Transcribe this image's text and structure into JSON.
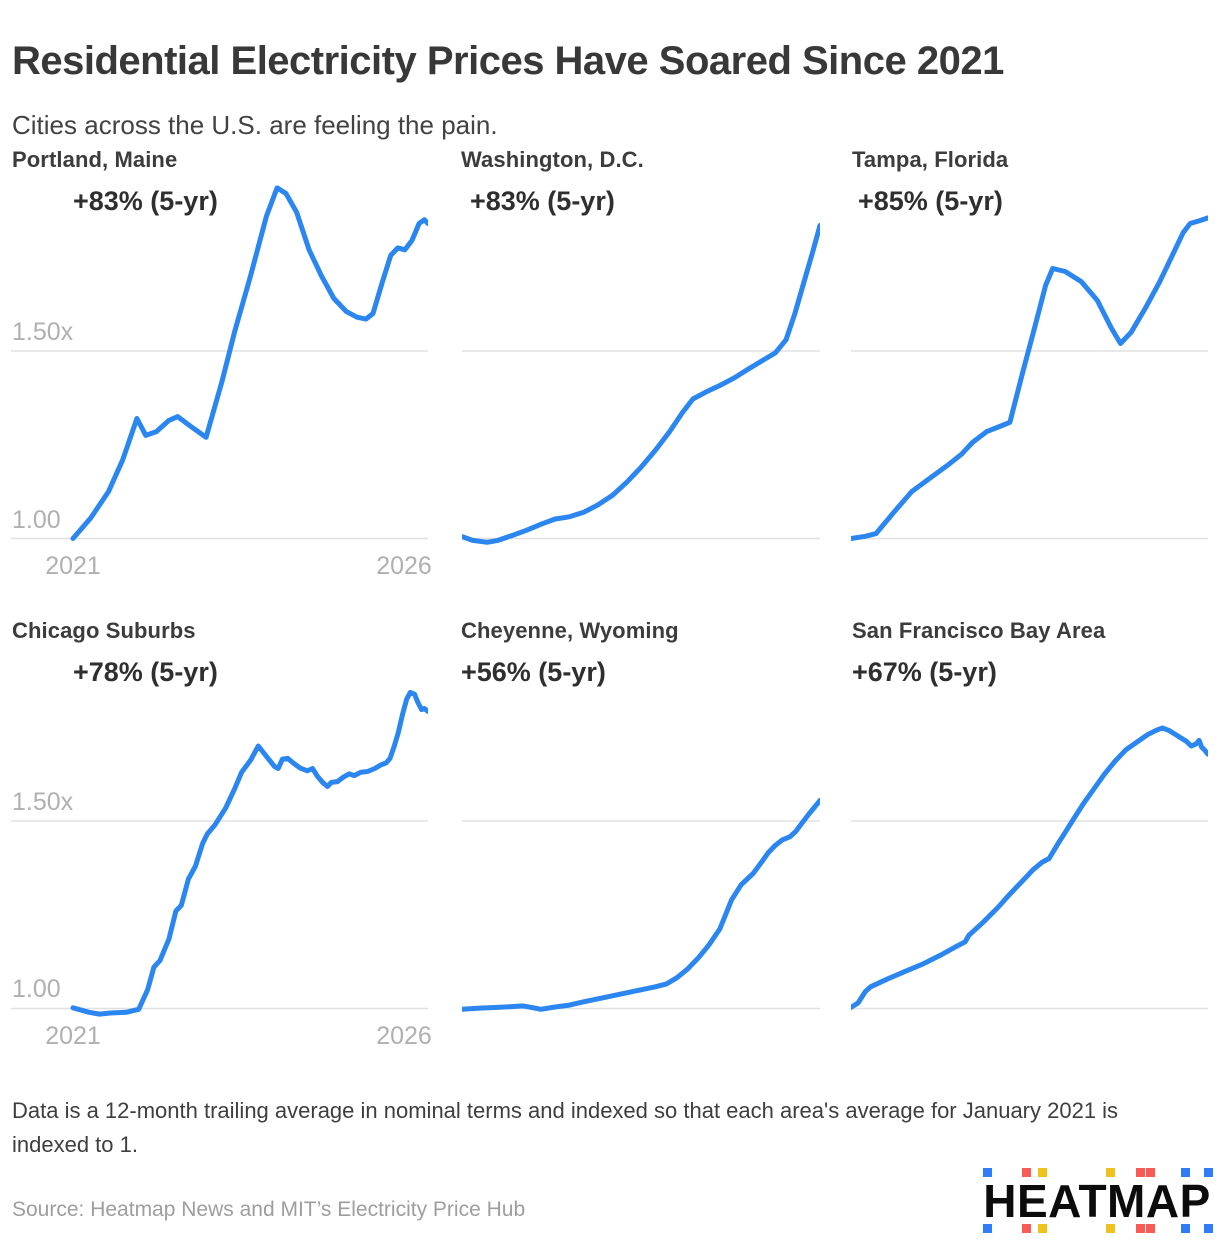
{
  "header": {
    "title": "Residential Electricity Prices Have Soared Since 2021",
    "subtitle": "Cities across the U.S. are feeling the pain."
  },
  "axis": {
    "y_label_upper": "1.50x",
    "y_label_lower": "1.00",
    "x_label_start": "2021",
    "x_label_end": "2026"
  },
  "colors": {
    "line": "#2b86f0",
    "grid": "#e0e0e0",
    "axis_label": "#b0b0b0",
    "logo_blue": "#2f7cf6",
    "logo_red": "#f75b56",
    "logo_yellow": "#eec31c"
  },
  "footer": {
    "note": "Data is a 12-month trailing average in nominal terms and indexed so that each area's average for January 2021 is indexed to 1.",
    "source": "Source: Heatmap News and MIT’s Electricity Price Hub"
  },
  "logo": {
    "text": "HEATMAP",
    "square_colors": [
      "#2f7cf6",
      "#f75b56",
      "#eec31c",
      "#eec31c",
      "#f75b56",
      "#f75b56",
      "#2f7cf6",
      "#2f7cf6"
    ]
  },
  "chart_data": [
    {
      "type": "line",
      "title": "Portland, Maine",
      "annotation": "+83% (5-yr)",
      "change_5yr_pct": 83,
      "x_range": [
        "2021",
        "2026"
      ],
      "x_unit": "fraction of timeline Jan 2021 to end of series",
      "ylabel": "price index (Jan 2021 = 1)",
      "y_gridlines": [
        1.0,
        1.5
      ],
      "points": [
        [
          0,
          1.0
        ],
        [
          0.05,
          1.055
        ],
        [
          0.1,
          1.125
        ],
        [
          0.14,
          1.21
        ],
        [
          0.18,
          1.32
        ],
        [
          0.205,
          1.275
        ],
        [
          0.235,
          1.285
        ],
        [
          0.27,
          1.315
        ],
        [
          0.295,
          1.325
        ],
        [
          0.33,
          1.3
        ],
        [
          0.375,
          1.27
        ],
        [
          0.42,
          1.42
        ],
        [
          0.455,
          1.55
        ],
        [
          0.5,
          1.7
        ],
        [
          0.545,
          1.86
        ],
        [
          0.575,
          1.935
        ],
        [
          0.6,
          1.92
        ],
        [
          0.63,
          1.87
        ],
        [
          0.665,
          1.77
        ],
        [
          0.7,
          1.7
        ],
        [
          0.735,
          1.64
        ],
        [
          0.77,
          1.605
        ],
        [
          0.8,
          1.59
        ],
        [
          0.825,
          1.585
        ],
        [
          0.845,
          1.6
        ],
        [
          0.87,
          1.68
        ],
        [
          0.895,
          1.755
        ],
        [
          0.915,
          1.775
        ],
        [
          0.935,
          1.77
        ],
        [
          0.955,
          1.795
        ],
        [
          0.975,
          1.84
        ],
        [
          0.99,
          1.85
        ],
        [
          1,
          1.84
        ]
      ]
    },
    {
      "type": "line",
      "title": "Washington, D.C.",
      "annotation": "+83% (5-yr)",
      "change_5yr_pct": 83,
      "x_range": [
        "2021",
        "2026"
      ],
      "x_unit": "fraction of timeline Jan 2021 to end of series",
      "ylabel": "price index (Jan 2021 = 1)",
      "y_gridlines": [
        1.0,
        1.5
      ],
      "points": [
        [
          0,
          1.005
        ],
        [
          0.03,
          0.995
        ],
        [
          0.07,
          0.99
        ],
        [
          0.1,
          0.995
        ],
        [
          0.14,
          1.008
        ],
        [
          0.18,
          1.022
        ],
        [
          0.22,
          1.038
        ],
        [
          0.26,
          1.052
        ],
        [
          0.3,
          1.058
        ],
        [
          0.34,
          1.07
        ],
        [
          0.38,
          1.09
        ],
        [
          0.42,
          1.115
        ],
        [
          0.46,
          1.15
        ],
        [
          0.5,
          1.19
        ],
        [
          0.54,
          1.235
        ],
        [
          0.58,
          1.285
        ],
        [
          0.615,
          1.335
        ],
        [
          0.645,
          1.372
        ],
        [
          0.68,
          1.39
        ],
        [
          0.72,
          1.408
        ],
        [
          0.76,
          1.428
        ],
        [
          0.8,
          1.452
        ],
        [
          0.84,
          1.475
        ],
        [
          0.875,
          1.495
        ],
        [
          0.905,
          1.53
        ],
        [
          0.93,
          1.6
        ],
        [
          0.96,
          1.7
        ],
        [
          0.98,
          1.765
        ],
        [
          1,
          1.835
        ]
      ]
    },
    {
      "type": "line",
      "title": "Tampa, Florida",
      "annotation": "+85% (5-yr)",
      "change_5yr_pct": 85,
      "x_range": [
        "2021",
        "2026"
      ],
      "x_unit": "fraction of timeline Jan 2021 to end of series",
      "ylabel": "price index (Jan 2021 = 1)",
      "y_gridlines": [
        1.0,
        1.5
      ],
      "points": [
        [
          0,
          1.0
        ],
        [
          0.04,
          1.006
        ],
        [
          0.07,
          1.013
        ],
        [
          0.12,
          1.07
        ],
        [
          0.17,
          1.125
        ],
        [
          0.22,
          1.16
        ],
        [
          0.27,
          1.195
        ],
        [
          0.31,
          1.225
        ],
        [
          0.34,
          1.256
        ],
        [
          0.38,
          1.285
        ],
        [
          0.42,
          1.3
        ],
        [
          0.445,
          1.31
        ],
        [
          0.48,
          1.44
        ],
        [
          0.515,
          1.565
        ],
        [
          0.545,
          1.675
        ],
        [
          0.565,
          1.72
        ],
        [
          0.6,
          1.712
        ],
        [
          0.645,
          1.685
        ],
        [
          0.69,
          1.635
        ],
        [
          0.73,
          1.56
        ],
        [
          0.755,
          1.52
        ],
        [
          0.785,
          1.55
        ],
        [
          0.825,
          1.615
        ],
        [
          0.865,
          1.685
        ],
        [
          0.9,
          1.755
        ],
        [
          0.93,
          1.815
        ],
        [
          0.95,
          1.84
        ],
        [
          0.975,
          1.847
        ],
        [
          1,
          1.855
        ]
      ]
    },
    {
      "type": "line",
      "title": "Chicago Suburbs",
      "annotation": "+78% (5-yr)",
      "change_5yr_pct": 78,
      "x_range": [
        "2021",
        "2026"
      ],
      "x_unit": "fraction of timeline Jan 2021 to end of series",
      "ylabel": "price index (Jan 2021 = 1)",
      "y_gridlines": [
        1.0,
        1.5
      ],
      "points": [
        [
          0,
          1.002
        ],
        [
          0.045,
          0.99
        ],
        [
          0.075,
          0.985
        ],
        [
          0.105,
          0.988
        ],
        [
          0.15,
          0.99
        ],
        [
          0.185,
          0.998
        ],
        [
          0.21,
          1.05
        ],
        [
          0.228,
          1.11
        ],
        [
          0.245,
          1.128
        ],
        [
          0.27,
          1.185
        ],
        [
          0.29,
          1.26
        ],
        [
          0.305,
          1.275
        ],
        [
          0.325,
          1.345
        ],
        [
          0.345,
          1.38
        ],
        [
          0.365,
          1.44
        ],
        [
          0.378,
          1.465
        ],
        [
          0.4,
          1.49
        ],
        [
          0.43,
          1.535
        ],
        [
          0.455,
          1.585
        ],
        [
          0.475,
          1.63
        ],
        [
          0.5,
          1.662
        ],
        [
          0.522,
          1.7
        ],
        [
          0.545,
          1.672
        ],
        [
          0.568,
          1.645
        ],
        [
          0.578,
          1.64
        ],
        [
          0.59,
          1.665
        ],
        [
          0.605,
          1.667
        ],
        [
          0.62,
          1.655
        ],
        [
          0.64,
          1.641
        ],
        [
          0.66,
          1.634
        ],
        [
          0.675,
          1.64
        ],
        [
          0.688,
          1.62
        ],
        [
          0.703,
          1.603
        ],
        [
          0.717,
          1.592
        ],
        [
          0.728,
          1.603
        ],
        [
          0.745,
          1.605
        ],
        [
          0.76,
          1.616
        ],
        [
          0.778,
          1.626
        ],
        [
          0.792,
          1.621
        ],
        [
          0.81,
          1.63
        ],
        [
          0.83,
          1.632
        ],
        [
          0.85,
          1.64
        ],
        [
          0.868,
          1.65
        ],
        [
          0.882,
          1.655
        ],
        [
          0.893,
          1.667
        ],
        [
          0.905,
          1.7
        ],
        [
          0.916,
          1.735
        ],
        [
          0.928,
          1.783
        ],
        [
          0.94,
          1.825
        ],
        [
          0.95,
          1.843
        ],
        [
          0.962,
          1.838
        ],
        [
          0.972,
          1.815
        ],
        [
          0.982,
          1.797
        ],
        [
          0.99,
          1.8
        ],
        [
          1,
          1.792
        ]
      ]
    },
    {
      "type": "line",
      "title": "Cheyenne, Wyoming",
      "annotation": "+56% (5-yr)",
      "change_5yr_pct": 56,
      "x_range": [
        "2021",
        "2026"
      ],
      "x_unit": "fraction of timeline Jan 2021 to end of series",
      "ylabel": "price index (Jan 2021 = 1)",
      "y_gridlines": [
        1.0,
        1.5
      ],
      "points": [
        [
          0,
          0.998
        ],
        [
          0.05,
          1.001
        ],
        [
          0.1,
          1.003
        ],
        [
          0.14,
          1.005
        ],
        [
          0.17,
          1.007
        ],
        [
          0.2,
          1.002
        ],
        [
          0.22,
          0.998
        ],
        [
          0.26,
          1.004
        ],
        [
          0.3,
          1.009
        ],
        [
          0.34,
          1.018
        ],
        [
          0.38,
          1.026
        ],
        [
          0.42,
          1.034
        ],
        [
          0.46,
          1.042
        ],
        [
          0.5,
          1.05
        ],
        [
          0.54,
          1.058
        ],
        [
          0.57,
          1.065
        ],
        [
          0.6,
          1.082
        ],
        [
          0.63,
          1.105
        ],
        [
          0.66,
          1.135
        ],
        [
          0.69,
          1.17
        ],
        [
          0.72,
          1.212
        ],
        [
          0.753,
          1.29
        ],
        [
          0.78,
          1.33
        ],
        [
          0.813,
          1.36
        ],
        [
          0.838,
          1.392
        ],
        [
          0.855,
          1.415
        ],
        [
          0.875,
          1.435
        ],
        [
          0.895,
          1.45
        ],
        [
          0.916,
          1.458
        ],
        [
          0.932,
          1.472
        ],
        [
          0.95,
          1.495
        ],
        [
          0.97,
          1.52
        ],
        [
          0.985,
          1.537
        ],
        [
          1,
          1.555
        ]
      ]
    },
    {
      "type": "line",
      "title": "San Francisco Bay Area",
      "annotation": "+67% (5-yr)",
      "change_5yr_pct": 67,
      "x_range": [
        "2021",
        "2026"
      ],
      "x_unit": "fraction of timeline Jan 2021 to end of series",
      "ylabel": "price index (Jan 2021 = 1)",
      "y_gridlines": [
        1.0,
        1.5
      ],
      "points": [
        [
          0,
          1.003
        ],
        [
          0.02,
          1.015
        ],
        [
          0.04,
          1.045
        ],
        [
          0.055,
          1.058
        ],
        [
          0.1,
          1.078
        ],
        [
          0.15,
          1.098
        ],
        [
          0.2,
          1.118
        ],
        [
          0.25,
          1.142
        ],
        [
          0.29,
          1.163
        ],
        [
          0.32,
          1.178
        ],
        [
          0.33,
          1.195
        ],
        [
          0.37,
          1.23
        ],
        [
          0.41,
          1.268
        ],
        [
          0.445,
          1.305
        ],
        [
          0.48,
          1.34
        ],
        [
          0.51,
          1.37
        ],
        [
          0.535,
          1.39
        ],
        [
          0.555,
          1.4
        ],
        [
          0.58,
          1.44
        ],
        [
          0.6,
          1.47
        ],
        [
          0.62,
          1.5
        ],
        [
          0.65,
          1.545
        ],
        [
          0.68,
          1.585
        ],
        [
          0.71,
          1.625
        ],
        [
          0.74,
          1.66
        ],
        [
          0.77,
          1.69
        ],
        [
          0.8,
          1.71
        ],
        [
          0.83,
          1.73
        ],
        [
          0.855,
          1.742
        ],
        [
          0.872,
          1.748
        ],
        [
          0.89,
          1.742
        ],
        [
          0.915,
          1.727
        ],
        [
          0.94,
          1.712
        ],
        [
          0.953,
          1.7
        ],
        [
          0.966,
          1.705
        ],
        [
          0.975,
          1.715
        ],
        [
          0.982,
          1.697
        ],
        [
          0.99,
          1.69
        ],
        [
          1,
          1.678
        ]
      ]
    }
  ]
}
